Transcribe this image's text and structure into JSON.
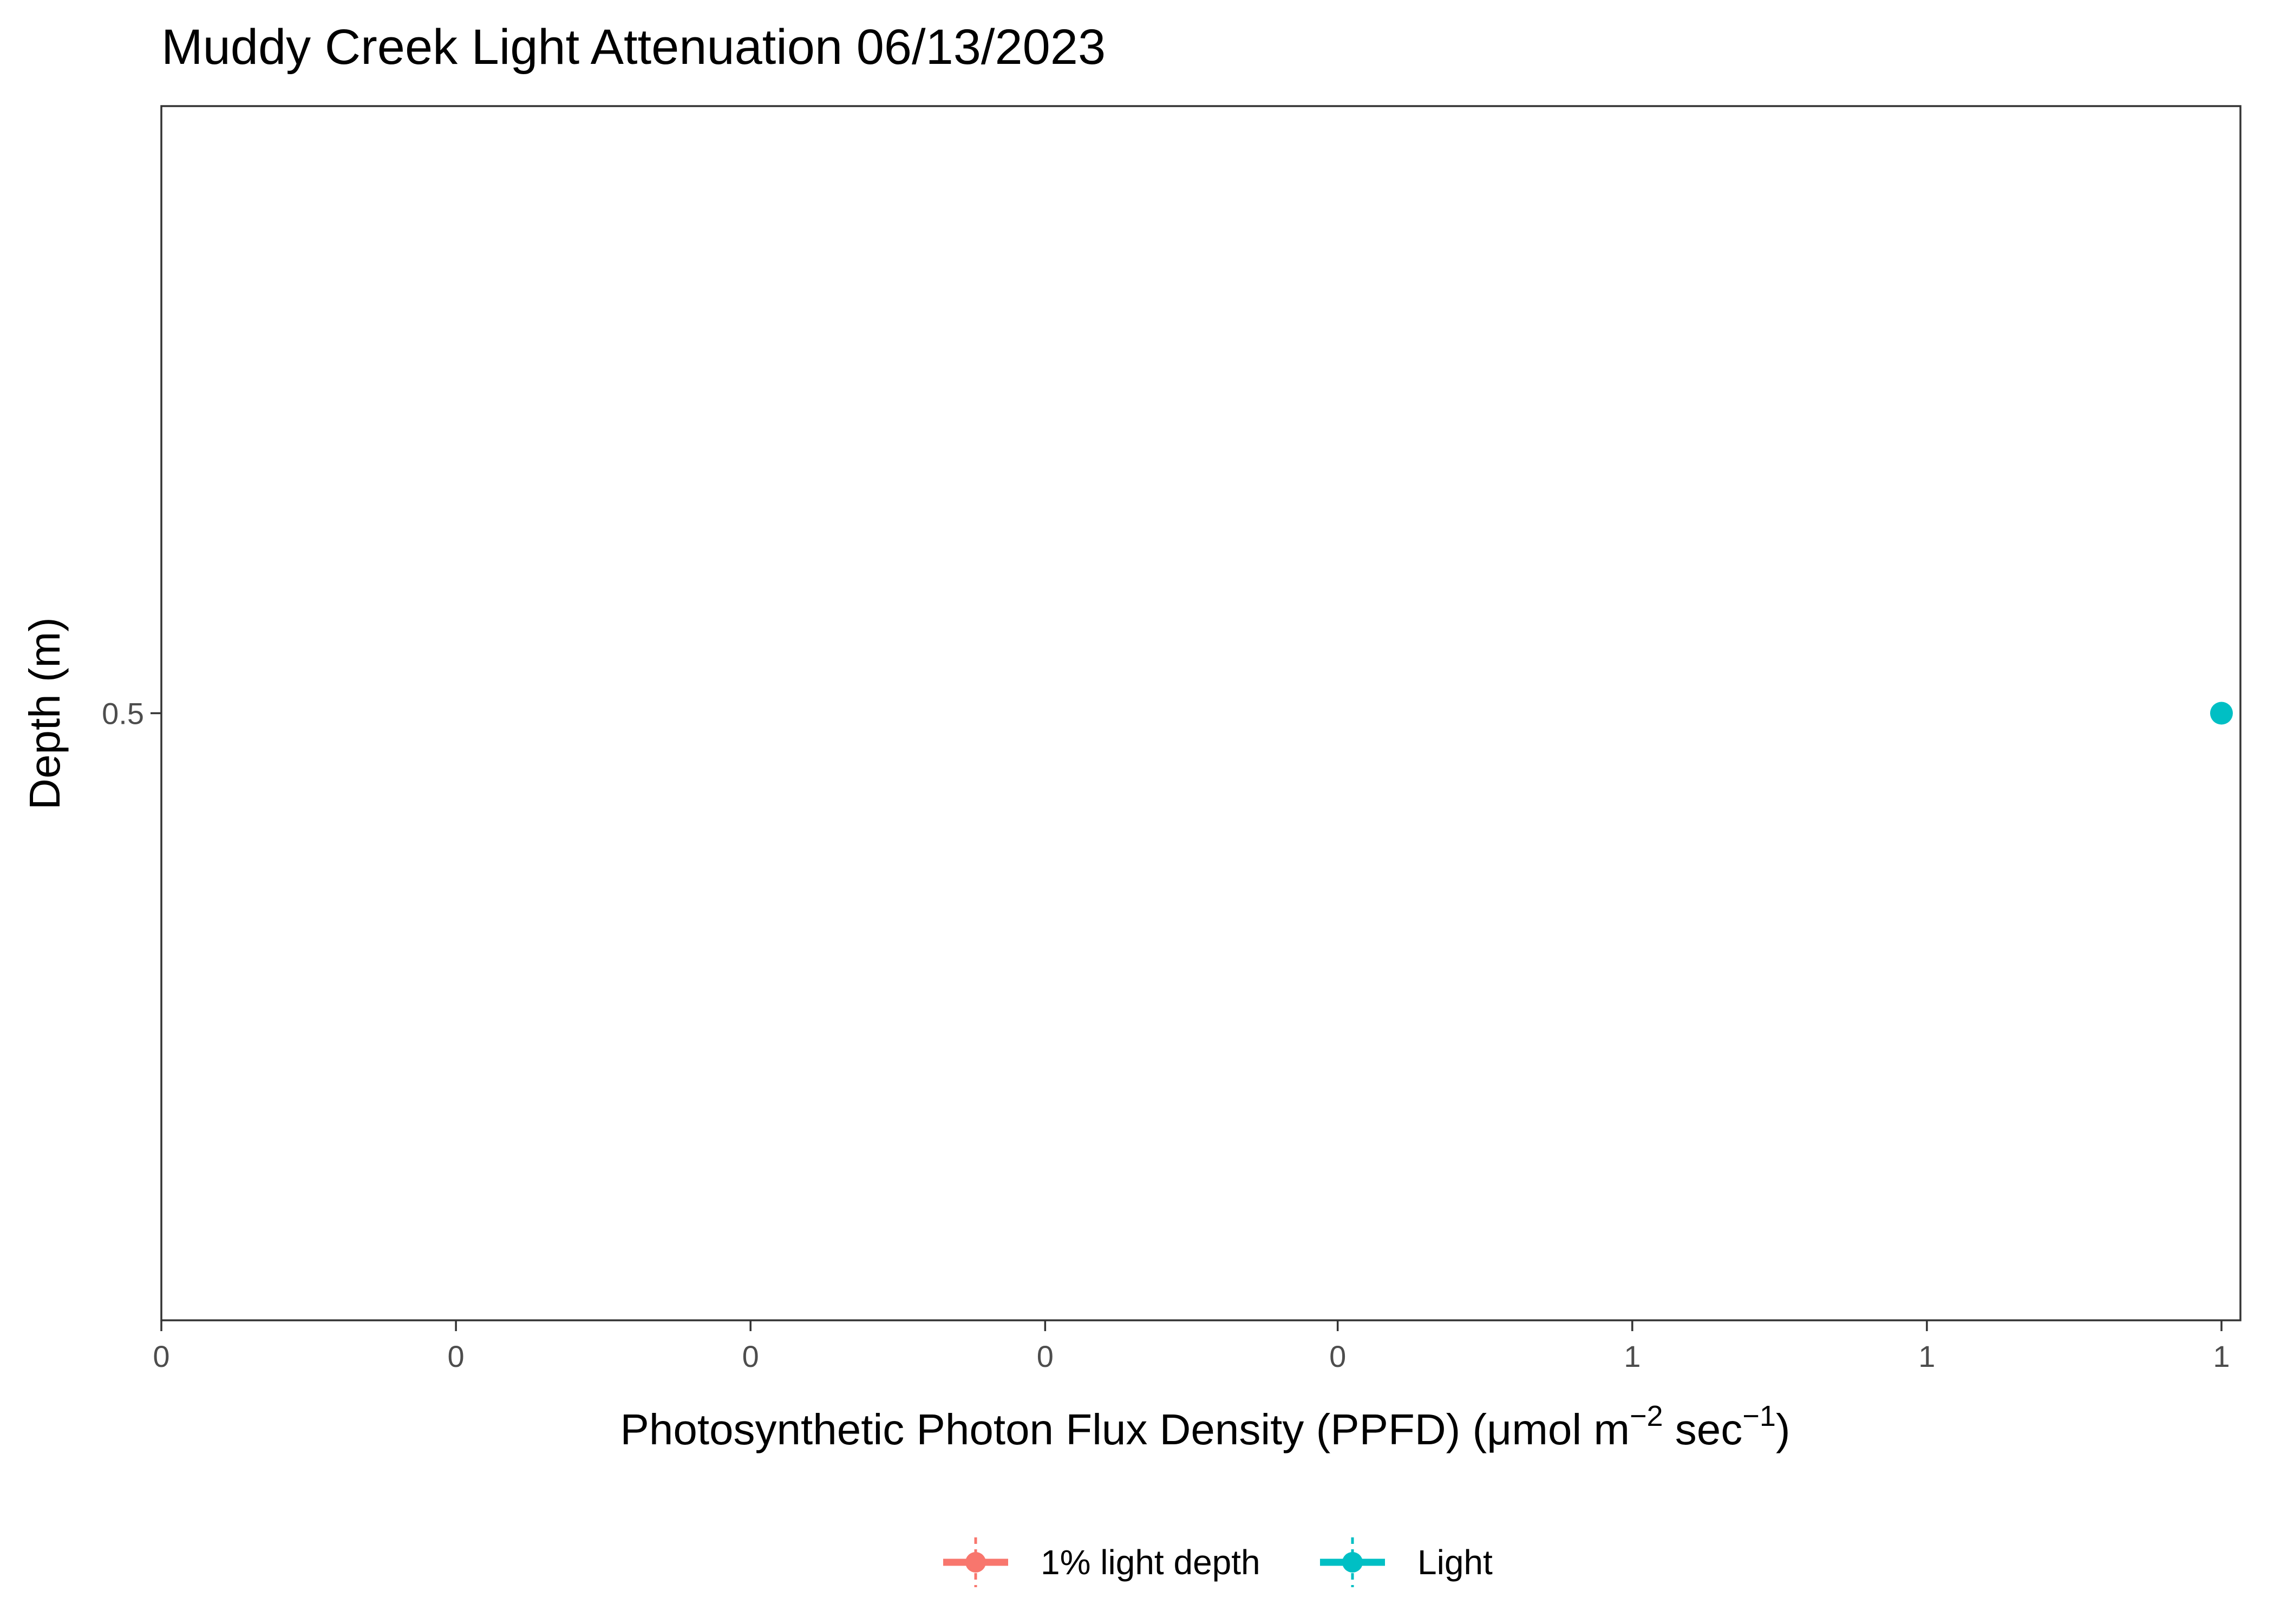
{
  "chart_data": {
    "type": "scatter",
    "title": "Muddy Creek Light Attenuation 06/13/2023",
    "xlabel": {
      "main": "Photosynthetic Photon Flux Density (PPFD) (μmol m",
      "exp1": "−2",
      "mid": " sec",
      "exp2": "−1",
      "end": ")"
    },
    "ylabel": "Depth (m)",
    "xlim": [
      0,
      1.0
    ],
    "ylim": [
      0.49,
      0.51
    ],
    "y_reversed": true,
    "x_ticks": [
      {
        "value": 0.0,
        "label": "0"
      },
      {
        "value": 0.143,
        "label": "0"
      },
      {
        "value": 0.286,
        "label": "0"
      },
      {
        "value": 0.429,
        "label": "0"
      },
      {
        "value": 0.571,
        "label": "0"
      },
      {
        "value": 0.714,
        "label": "1"
      },
      {
        "value": 0.857,
        "label": "1"
      },
      {
        "value": 1.0,
        "label": "1"
      }
    ],
    "y_ticks": [
      {
        "value": 0.5,
        "label": "0.5"
      }
    ],
    "series": [
      {
        "name": "1% light depth",
        "color": "#F8766D",
        "points": []
      },
      {
        "name": "Light",
        "color": "#00BFC4",
        "points": [
          {
            "x": 1.0,
            "y": 0.5
          }
        ]
      }
    ],
    "legend": {
      "position": "bottom",
      "items": [
        {
          "label": "1% light depth",
          "color": "#F8766D"
        },
        {
          "label": "Light",
          "color": "#00BFC4"
        }
      ]
    },
    "grid": false
  }
}
